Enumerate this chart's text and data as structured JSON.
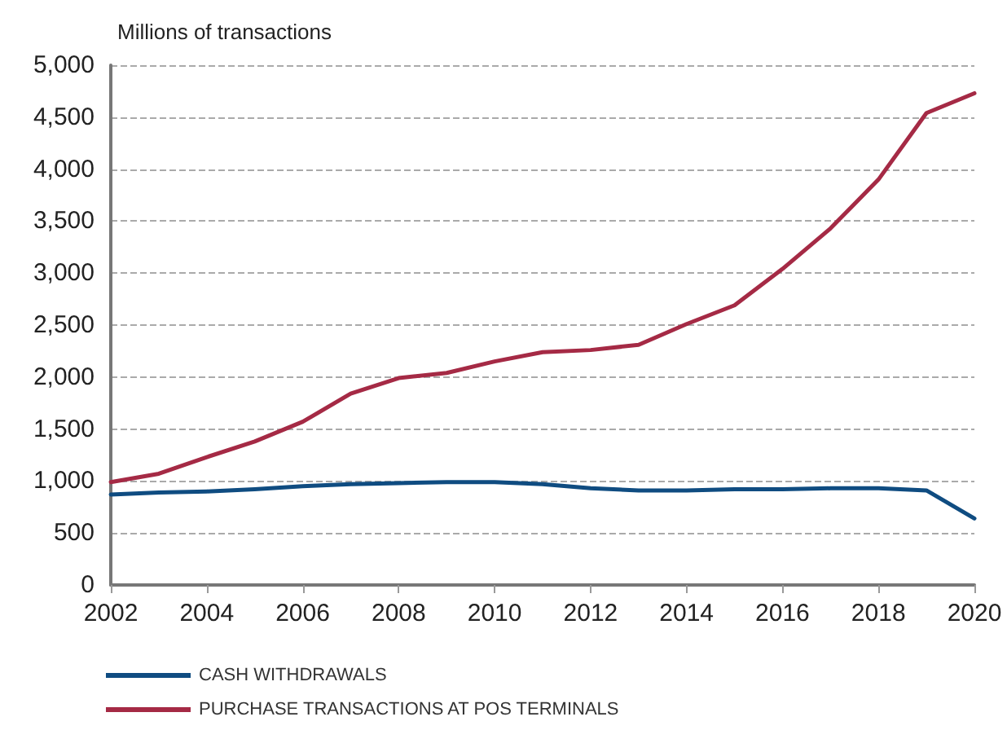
{
  "chart_data": {
    "type": "line",
    "ylabel": "Millions of transactions",
    "x": [
      2002,
      2003,
      2004,
      2005,
      2006,
      2007,
      2008,
      2009,
      2010,
      2011,
      2012,
      2013,
      2014,
      2015,
      2016,
      2017,
      2018,
      2019,
      2020
    ],
    "series": [
      {
        "name": "CASH WITHDRAWALS",
        "color": "#0f4c81",
        "values": [
          870,
          890,
          900,
          920,
          950,
          970,
          980,
          990,
          990,
          970,
          930,
          910,
          910,
          920,
          920,
          930,
          930,
          910,
          640
        ]
      },
      {
        "name": "PURCHASE TRANSACTIONS AT POS TERMINALS",
        "color": "#a52a45",
        "values": [
          990,
          1070,
          1230,
          1380,
          1570,
          1840,
          1990,
          2040,
          2150,
          2240,
          2260,
          2310,
          2510,
          2690,
          3040,
          3430,
          3900,
          4540,
          4730
        ]
      }
    ],
    "xlim": [
      2002,
      2020
    ],
    "xticks": [
      2002,
      2004,
      2006,
      2008,
      2010,
      2012,
      2014,
      2016,
      2018,
      2020
    ],
    "ylim": [
      0,
      5000
    ],
    "yticks": [
      0,
      500,
      {
        "value": 1000,
        "label": "1,000"
      },
      {
        "value": 1500,
        "label": "1,500"
      },
      {
        "value": 2000,
        "label": "2,000"
      },
      {
        "value": 2500,
        "label": "2,500"
      },
      {
        "value": 3000,
        "label": "3,000"
      },
      {
        "value": 3500,
        "label": "3,500"
      },
      {
        "value": 4000,
        "label": "4,000"
      },
      {
        "value": 4500,
        "label": "4,500"
      },
      {
        "value": 5000,
        "label": "5,000"
      }
    ],
    "grid": "y",
    "legend": "bottom left",
    "marker": "none",
    "line_style": "solid"
  }
}
